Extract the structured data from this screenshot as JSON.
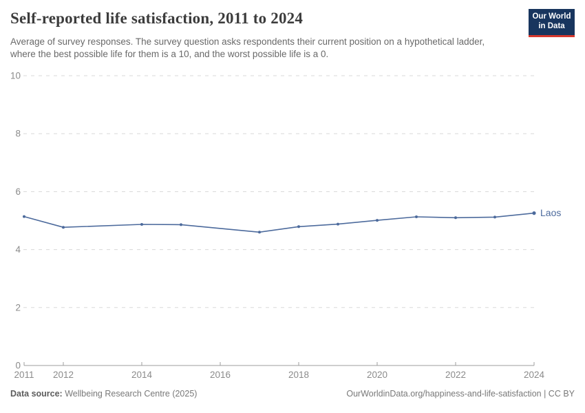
{
  "header": {
    "title": "Self-reported life satisfaction, 2011 to 2024",
    "subtitle": "Average of survey responses. The survey question asks respondents their current position on a hypothetical ladder, where the best possible life for them is a 10, and the worst possible life is a 0.",
    "logo": {
      "line1": "Our World",
      "line2": "in Data"
    }
  },
  "chart_data": {
    "type": "line",
    "title": "Self-reported life satisfaction, 2011 to 2024",
    "xlabel": "",
    "ylabel": "",
    "xlim": [
      2011,
      2024
    ],
    "ylim": [
      0,
      10
    ],
    "x_ticks": [
      2011,
      2012,
      2014,
      2016,
      2018,
      2020,
      2022,
      2024
    ],
    "y_ticks": [
      0,
      2,
      4,
      6,
      8,
      10
    ],
    "grid": "horizontal-dashed",
    "legend_position": "end-of-line-label",
    "missing_years_interpolated": [
      2013,
      2016
    ],
    "series": [
      {
        "name": "Laos",
        "color": "#4c6a9c",
        "points": [
          [
            2011,
            5.14
          ],
          [
            2012,
            4.77
          ],
          [
            2014,
            4.87
          ],
          [
            2015,
            4.86
          ],
          [
            2017,
            4.6
          ],
          [
            2018,
            4.79
          ],
          [
            2019,
            4.88
          ],
          [
            2020,
            5.01
          ],
          [
            2021,
            5.13
          ],
          [
            2022,
            5.1
          ],
          [
            2023,
            5.12
          ],
          [
            2024,
            5.26
          ]
        ]
      }
    ]
  },
  "footer": {
    "datasource_label": "Data source:",
    "datasource_value": "Wellbeing Research Centre (2025)",
    "note": "OurWorldinData.org/happiness-and-life-satisfaction | CC BY"
  },
  "colors": {
    "line": "#4c6a9c",
    "gridline": "#d8d8d8",
    "axis": "#9e9e9e",
    "tick_label": "#8b8b8b",
    "logo_navy": "#18355e",
    "logo_red": "#d7382d"
  }
}
